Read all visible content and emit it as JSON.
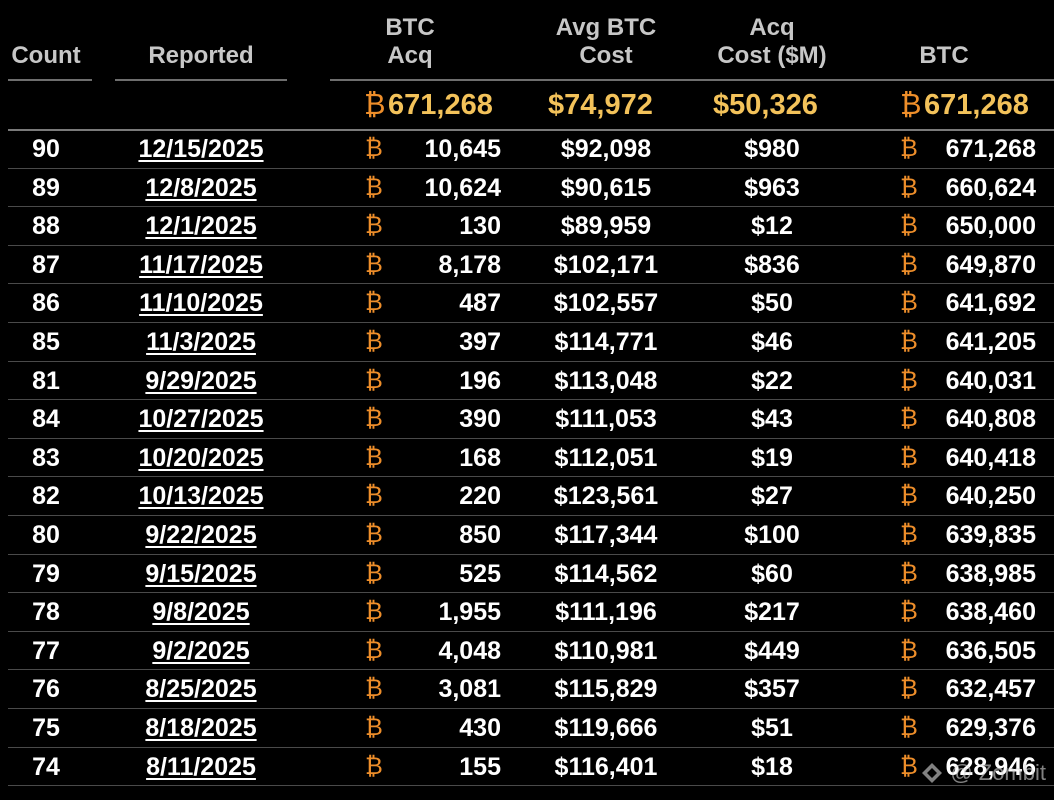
{
  "header": {
    "count": "Count",
    "reported": "Reported",
    "btc_acq_1": "BTC",
    "btc_acq_2": "Acq",
    "avg_cost_1": "Avg BTC",
    "avg_cost_2": "Cost",
    "acq_cost_1": "Acq",
    "acq_cost_2": "Cost ($M)",
    "btc": "BTC"
  },
  "totals": {
    "btc_symbol": "₿",
    "btc_acq": "671,268",
    "avg_cost": "$74,972",
    "acq_cost": "$50,326",
    "btc_total": "671,268"
  },
  "rows": [
    {
      "count": "90",
      "date": "12/15/2025",
      "acq": "10,645",
      "avg": "$92,098",
      "cost": "$980",
      "btc": "671,268"
    },
    {
      "count": "89",
      "date": "12/8/2025",
      "acq": "10,624",
      "avg": "$90,615",
      "cost": "$963",
      "btc": "660,624"
    },
    {
      "count": "88",
      "date": "12/1/2025",
      "acq": "130",
      "avg": "$89,959",
      "cost": "$12",
      "btc": "650,000"
    },
    {
      "count": "87",
      "date": "11/17/2025",
      "acq": "8,178",
      "avg": "$102,171",
      "cost": "$836",
      "btc": "649,870"
    },
    {
      "count": "86",
      "date": "11/10/2025",
      "acq": "487",
      "avg": "$102,557",
      "cost": "$50",
      "btc": "641,692"
    },
    {
      "count": "85",
      "date": "11/3/2025",
      "acq": "397",
      "avg": "$114,771",
      "cost": "$46",
      "btc": "641,205"
    },
    {
      "count": "81",
      "date": "9/29/2025",
      "acq": "196",
      "avg": "$113,048",
      "cost": "$22",
      "btc": "640,031"
    },
    {
      "count": "84",
      "date": "10/27/2025",
      "acq": "390",
      "avg": "$111,053",
      "cost": "$43",
      "btc": "640,808"
    },
    {
      "count": "83",
      "date": "10/20/2025",
      "acq": "168",
      "avg": "$112,051",
      "cost": "$19",
      "btc": "640,418"
    },
    {
      "count": "82",
      "date": "10/13/2025",
      "acq": "220",
      "avg": "$123,561",
      "cost": "$27",
      "btc": "640,250"
    },
    {
      "count": "80",
      "date": "9/22/2025",
      "acq": "850",
      "avg": "$117,344",
      "cost": "$100",
      "btc": "639,835"
    },
    {
      "count": "79",
      "date": "9/15/2025",
      "acq": "525",
      "avg": "$114,562",
      "cost": "$60",
      "btc": "638,985"
    },
    {
      "count": "78",
      "date": "9/8/2025",
      "acq": "1,955",
      "avg": "$111,196",
      "cost": "$217",
      "btc": "638,460"
    },
    {
      "count": "77",
      "date": "9/2/2025",
      "acq": "4,048",
      "avg": "$110,981",
      "cost": "$449",
      "btc": "636,505"
    },
    {
      "count": "76",
      "date": "8/25/2025",
      "acq": "3,081",
      "avg": "$115,829",
      "cost": "$357",
      "btc": "632,457"
    },
    {
      "count": "75",
      "date": "8/18/2025",
      "acq": "430",
      "avg": "$119,666",
      "cost": "$51",
      "btc": "629,376"
    },
    {
      "count": "74",
      "date": "8/11/2025",
      "acq": "155",
      "avg": "$116,401",
      "cost": "$18",
      "btc": "628,946"
    }
  ],
  "watermark": "@ Zombit",
  "colors": {
    "accent": "#f3c25a",
    "btc_symbol": "#ee8e2a",
    "background": "#000000"
  }
}
